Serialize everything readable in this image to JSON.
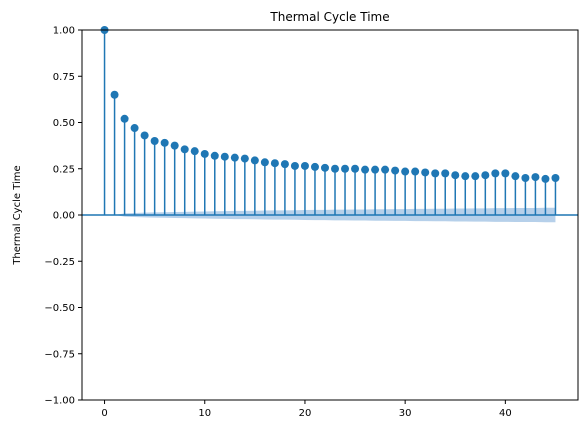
{
  "chart_data": {
    "type": "stem",
    "title": "Thermal Cycle Time",
    "xlabel": "",
    "ylabel": "Thermal Cycle Time",
    "xlim": [
      -2.25,
      47.25
    ],
    "ylim": [
      -1.0,
      1.0
    ],
    "x_ticks": [
      0,
      10,
      20,
      30,
      40
    ],
    "y_ticks": [
      -1.0,
      -0.75,
      -0.5,
      -0.25,
      0.0,
      0.25,
      0.5,
      0.75,
      1.0
    ],
    "x_tick_labels": [
      "0",
      "10",
      "20",
      "30",
      "40"
    ],
    "y_tick_labels": [
      "−1.00",
      "−0.75",
      "−0.50",
      "−0.25",
      "0.00",
      "0.25",
      "0.50",
      "0.75",
      "1.00"
    ],
    "grid": false,
    "x": [
      0,
      1,
      2,
      3,
      4,
      5,
      6,
      7,
      8,
      9,
      10,
      11,
      12,
      13,
      14,
      15,
      16,
      17,
      18,
      19,
      20,
      21,
      22,
      23,
      24,
      25,
      26,
      27,
      28,
      29,
      30,
      31,
      32,
      33,
      34,
      35,
      36,
      37,
      38,
      39,
      40,
      41,
      42,
      43,
      44,
      45
    ],
    "values": [
      1.0,
      0.65,
      0.52,
      0.47,
      0.43,
      0.4,
      0.39,
      0.375,
      0.355,
      0.345,
      0.33,
      0.32,
      0.315,
      0.31,
      0.305,
      0.295,
      0.285,
      0.28,
      0.275,
      0.265,
      0.265,
      0.26,
      0.255,
      0.25,
      0.25,
      0.25,
      0.245,
      0.245,
      0.245,
      0.24,
      0.235,
      0.235,
      0.23,
      0.225,
      0.225,
      0.215,
      0.21,
      0.21,
      0.215,
      0.225,
      0.225,
      0.21,
      0.2,
      0.205,
      0.195,
      0.2
    ],
    "confidence_band_upper": [
      0.0,
      0.0,
      0.009,
      0.011,
      0.013,
      0.014,
      0.015,
      0.016,
      0.017,
      0.018,
      0.019,
      0.02,
      0.021,
      0.022,
      0.022,
      0.023,
      0.024,
      0.025,
      0.025,
      0.026,
      0.027,
      0.028,
      0.028,
      0.029,
      0.029,
      0.03,
      0.03,
      0.031,
      0.031,
      0.032,
      0.032,
      0.033,
      0.033,
      0.034,
      0.034,
      0.035,
      0.035,
      0.036,
      0.036,
      0.037,
      0.037,
      0.038,
      0.038,
      0.038,
      0.039,
      0.039
    ],
    "colors": {
      "stem": "#1f77b4",
      "band": "#a9c8e6",
      "zero_line": "#1f77b4"
    }
  }
}
